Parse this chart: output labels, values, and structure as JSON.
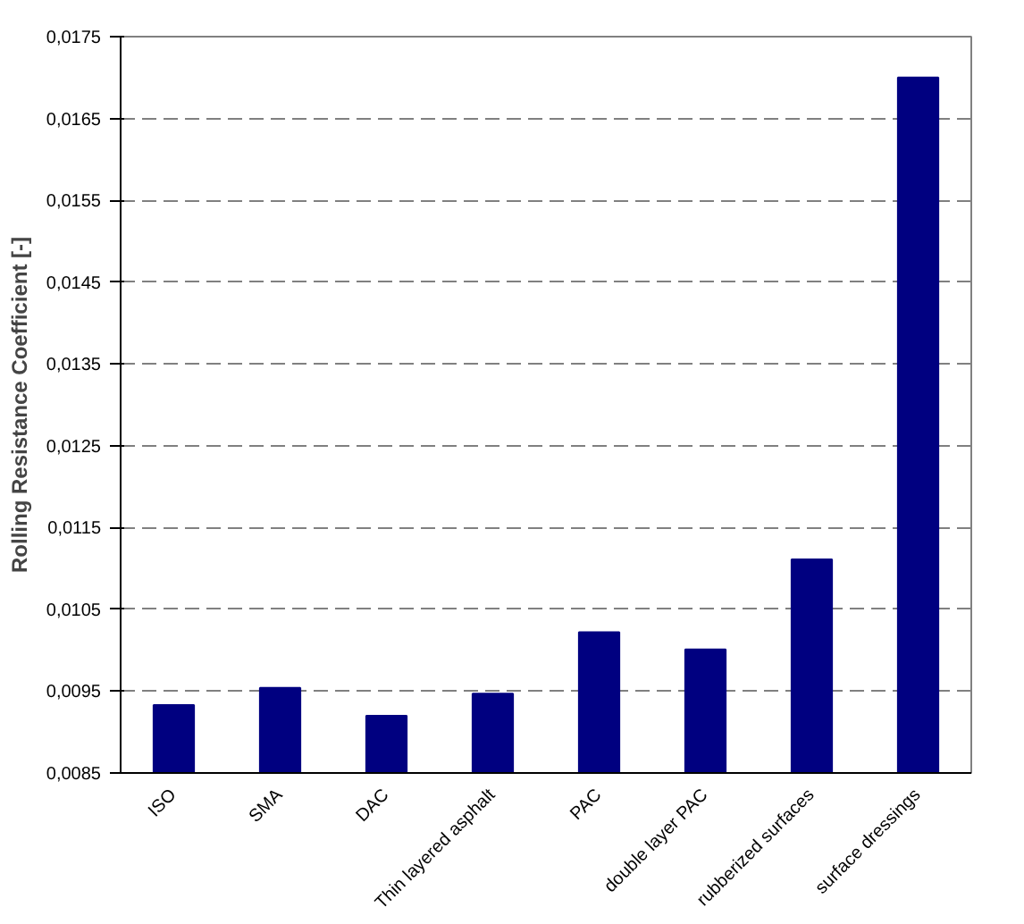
{
  "chart_data": {
    "type": "bar",
    "ylabel": "Rolling Resistance Coefficient [-]",
    "categories": [
      "ISO",
      "SMA",
      "DAC",
      "Thin layered asphalt",
      "PAC",
      "double layer PAC",
      "rubberized surfaces",
      "surface dressings"
    ],
    "values": [
      0.00933,
      0.00954,
      0.0092,
      0.00947,
      0.01022,
      0.01001,
      0.01111,
      0.017
    ],
    "color": "#000080",
    "ylim": [
      0.0085,
      0.0175
    ],
    "yticks": [
      {
        "value": 0.0085,
        "label": "0,0085"
      },
      {
        "value": 0.0095,
        "label": "0,0095"
      },
      {
        "value": 0.0105,
        "label": "0,0105"
      },
      {
        "value": 0.0115,
        "label": "0,0115"
      },
      {
        "value": 0.0125,
        "label": "0,0125"
      },
      {
        "value": 0.0135,
        "label": "0,0135"
      },
      {
        "value": 0.0145,
        "label": "0,0145"
      },
      {
        "value": 0.0155,
        "label": "0,0155"
      },
      {
        "value": 0.0165,
        "label": "0,0165"
      },
      {
        "value": 0.0175,
        "label": "0,0175"
      }
    ],
    "grid": "y",
    "line_style": "dashed"
  }
}
